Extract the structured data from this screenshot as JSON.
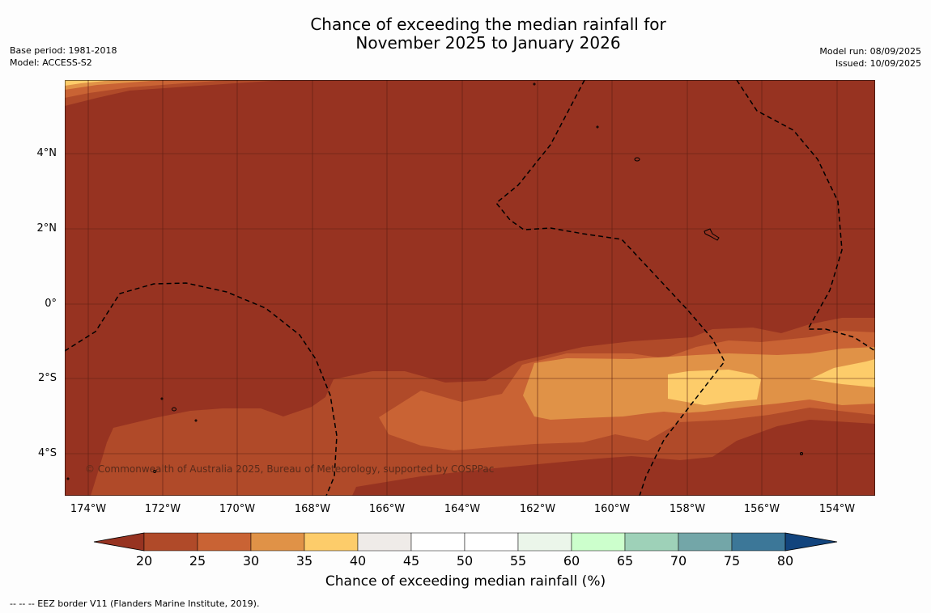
{
  "header": {
    "title_line1": "Chance of exceeding the median rainfall for",
    "title_line2": "November 2025 to January 2026",
    "base_period": "Base period: 1981-2018",
    "model": "Model: ACCESS-S2",
    "model_run": "Model run: 08/09/2025",
    "issued": "Issued: 10/09/2025"
  },
  "map": {
    "lat_labels": [
      "4°N",
      "2°N",
      "0°",
      "2°S",
      "4°S"
    ],
    "lon_labels": [
      "174°W",
      "172°W",
      "170°W",
      "168°W",
      "166°W",
      "164°W",
      "162°W",
      "160°W",
      "158°W",
      "156°W",
      "154°W"
    ],
    "copyright": "© Commonwealth of Australia 2025, Bureau of Meteorology, supported by COSPPac",
    "background_color": "#973321"
  },
  "colorbar": {
    "ticks": [
      "20",
      "25",
      "30",
      "35",
      "40",
      "45",
      "50",
      "55",
      "60",
      "65",
      "70",
      "75",
      "80"
    ],
    "colors": [
      "#973321",
      "#b04a29",
      "#c96334",
      "#e09247",
      "#fdcc6a",
      "#efebe8",
      "#ffffff",
      "#ffffff",
      "#ebf6ea",
      "#ccffcc",
      "#9ed1b8",
      "#73a6a8",
      "#3c7798",
      "#12447d"
    ],
    "label": "Chance of exceeding median rainfall (%)"
  },
  "footnote": "--  --  -- EEZ border V11 (Flanders Marine Institute, 2019)."
}
